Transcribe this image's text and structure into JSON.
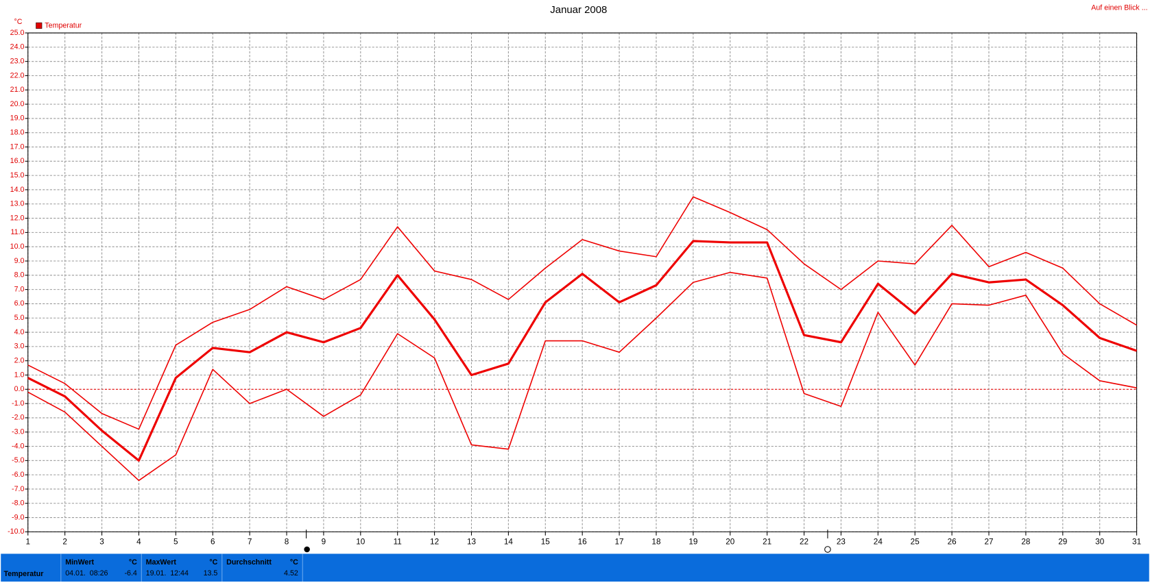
{
  "chart_data": {
    "type": "line",
    "title": "Januar 2008",
    "link": "Auf einen Blick ...",
    "y_unit": "°C",
    "legend": "Temperatur",
    "legend_color": "#e00000",
    "x": [
      1,
      2,
      3,
      4,
      5,
      6,
      7,
      8,
      9,
      10,
      11,
      12,
      13,
      14,
      15,
      16,
      17,
      18,
      19,
      20,
      21,
      22,
      23,
      24,
      25,
      26,
      27,
      28,
      29,
      30,
      31
    ],
    "xlim": [
      1,
      31
    ],
    "xticks": [
      1,
      2,
      3,
      4,
      5,
      6,
      7,
      8,
      9,
      10,
      11,
      12,
      13,
      14,
      15,
      16,
      17,
      18,
      19,
      20,
      21,
      22,
      23,
      24,
      25,
      26,
      27,
      28,
      29,
      30,
      31
    ],
    "ylim": [
      -10,
      25
    ],
    "yticks": [
      {
        "value": -10,
        "label": "-10.0"
      },
      {
        "value": -9,
        "label": "-9.0"
      },
      {
        "value": -8,
        "label": "-8.0"
      },
      {
        "value": -7,
        "label": "-7.0"
      },
      {
        "value": -6,
        "label": "-6.0"
      },
      {
        "value": -5,
        "label": "-5.0"
      },
      {
        "value": -4,
        "label": "-4.0"
      },
      {
        "value": -3,
        "label": "-3.0"
      },
      {
        "value": -2,
        "label": "-2.0"
      },
      {
        "value": -1,
        "label": "-1.0"
      },
      {
        "value": 0,
        "label": "0.0"
      },
      {
        "value": 1,
        "label": "1.0"
      },
      {
        "value": 2,
        "label": "2.0"
      },
      {
        "value": 3,
        "label": "3.0"
      },
      {
        "value": 4,
        "label": "4.0"
      },
      {
        "value": 5,
        "label": "5.0"
      },
      {
        "value": 6,
        "label": "6.0"
      },
      {
        "value": 7,
        "label": "7.0"
      },
      {
        "value": 8,
        "label": "8.0"
      },
      {
        "value": 9,
        "label": "9.0"
      },
      {
        "value": 10,
        "label": "10.0"
      },
      {
        "value": 11,
        "label": "11.0"
      },
      {
        "value": 12,
        "label": "12.0"
      },
      {
        "value": 13,
        "label": "13.0"
      },
      {
        "value": 14,
        "label": "14.0"
      },
      {
        "value": 15,
        "label": "15.0"
      },
      {
        "value": 16,
        "label": "16.0"
      },
      {
        "value": 17,
        "label": "17.0"
      },
      {
        "value": 18,
        "label": "18.0"
      },
      {
        "value": 19,
        "label": "19.0"
      },
      {
        "value": 20,
        "label": "20.0"
      },
      {
        "value": 21,
        "label": "21.0"
      },
      {
        "value": 22,
        "label": "22.0"
      },
      {
        "value": 23,
        "label": "23.0"
      },
      {
        "value": 24,
        "label": "24.0"
      },
      {
        "value": 25,
        "label": "25.0"
      }
    ],
    "grid": true,
    "series": [
      {
        "color": "#ee0000",
        "width": 1.5,
        "values": [
          1.7,
          0.4,
          -1.7,
          -2.8,
          3.1,
          4.7,
          5.6,
          7.2,
          6.3,
          7.7,
          11.4,
          8.3,
          7.7,
          6.3,
          8.5,
          10.5,
          9.7,
          9.3,
          13.5,
          12.4,
          11.2,
          8.8,
          7.0,
          9.0,
          8.8,
          11.5,
          8.6,
          9.6,
          8.5,
          6.0,
          4.5
        ]
      },
      {
        "color": "#ee0000",
        "width": 3,
        "values": [
          0.8,
          -0.5,
          -2.9,
          -5.0,
          0.8,
          2.9,
          2.6,
          4.0,
          3.3,
          4.3,
          8.0,
          4.9,
          1.0,
          1.8,
          6.1,
          8.1,
          6.1,
          7.3,
          10.4,
          10.3,
          10.3,
          3.8,
          3.3,
          7.4,
          5.3,
          8.1,
          7.5,
          7.7,
          5.9,
          3.6,
          2.7
        ]
      },
      {
        "color": "#ee0000",
        "width": 1.5,
        "values": [
          -0.2,
          -1.6,
          -4.0,
          -6.4,
          -4.6,
          1.4,
          -1.0,
          0.0,
          -1.9,
          -0.4,
          3.9,
          2.2,
          -3.9,
          -4.2,
          3.4,
          3.4,
          2.6,
          5.0,
          7.5,
          8.2,
          7.8,
          -0.3,
          -1.2,
          5.4,
          1.7,
          6.0,
          5.9,
          6.6,
          2.5,
          0.6,
          0.1
        ]
      }
    ]
  },
  "stats": {
    "name": "Temperatur",
    "min": {
      "label": "MinWert",
      "unit": "°C",
      "time": "04.01.  08:26",
      "value": "-6.4"
    },
    "max": {
      "label": "MaxWert",
      "unit": "°C",
      "time": "19.01.  12:44",
      "value": "13.5"
    },
    "avg": {
      "label": "Durchschnitt",
      "unit": "°C",
      "value": "4.52"
    }
  }
}
